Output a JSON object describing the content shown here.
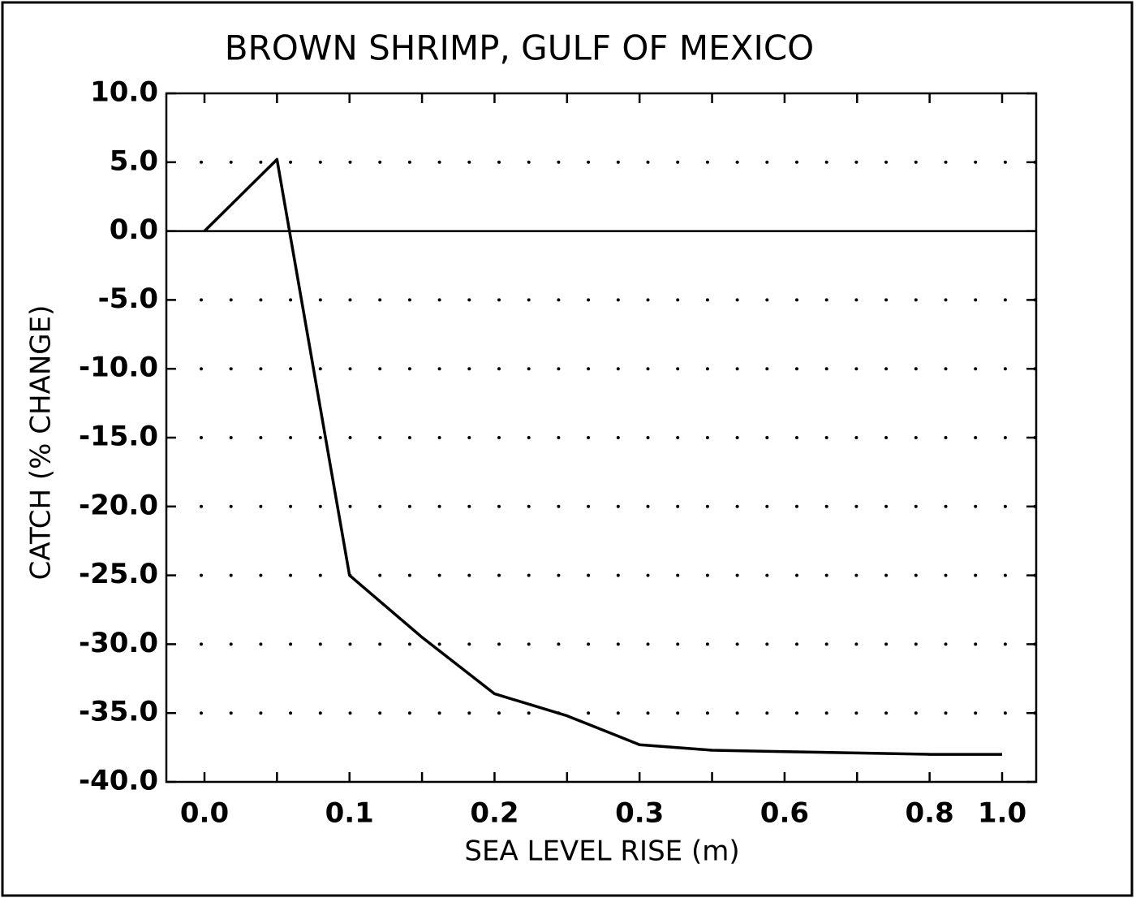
{
  "chart_data": {
    "type": "line",
    "title": "BROWN SHRIMP,  GULF OF MEXICO",
    "x_label": "SEA LEVEL RISE (m)",
    "y_label": "CATCH (% CHANGE)",
    "categories": [
      "0.0",
      null,
      "0.1",
      null,
      "0.2",
      null,
      "0.3",
      null,
      "0.6",
      null,
      "0.8",
      "1.0"
    ],
    "series": [
      {
        "name": "Brown shrimp",
        "color": "#000000",
        "values": [
          0,
          5.2,
          -25,
          -29.5,
          -33.6,
          -35.2,
          -37.3,
          -37.7,
          -37.8,
          -37.9,
          -38.0,
          -38.0
        ]
      }
    ],
    "ylim": [
      -40,
      10
    ],
    "yticks": [
      {
        "value": 10,
        "label": "10.0"
      },
      {
        "value": 5,
        "label": "5.0"
      },
      {
        "value": 0,
        "label": "0.0"
      },
      {
        "value": -5,
        "label": "-5.0"
      },
      {
        "value": -10,
        "label": "-10.0"
      },
      {
        "value": -15,
        "label": "-15.0"
      },
      {
        "value": -20,
        "label": "-20.0"
      },
      {
        "value": -25,
        "label": "-25.0"
      },
      {
        "value": -30,
        "label": "-30.0"
      },
      {
        "value": -35,
        "label": "-35.0"
      },
      {
        "value": -40,
        "label": "-40.0"
      }
    ],
    "grid": "dotted"
  }
}
